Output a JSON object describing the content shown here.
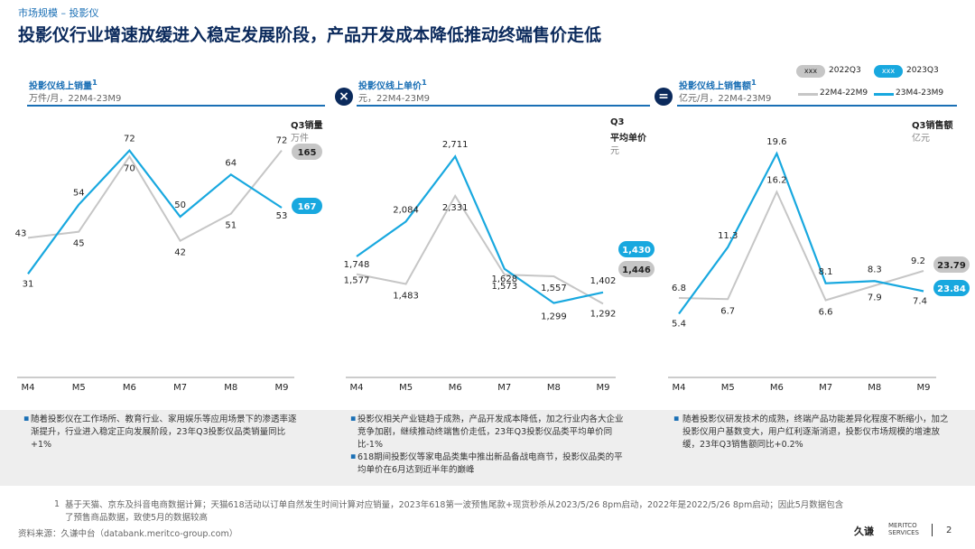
{
  "header": {
    "breadcrumb": "市场规模 – 投影仪",
    "title": "投影仪行业增速放缓进入稳定发展阶段，产品开发成本降低推动终端售价走低"
  },
  "legend": {
    "chip_label": "xxx",
    "year2022": "2022Q3",
    "year2023": "2023Q3",
    "series2022": "22M4-22M9",
    "series2023": "23M4-23M9",
    "color2022": "#c6c6c6",
    "color2023": "#18a8df"
  },
  "panels": [
    {
      "title": "投影仪线上销量",
      "title_sup": "1",
      "subtitle": "万件/月，22M4-23M9",
      "q3_label": "Q3销量",
      "q3_unit": "万件",
      "q3_2022": "165",
      "q3_2023": "167",
      "operator": ""
    },
    {
      "title": "投影仪线上单价",
      "title_sup": "1",
      "subtitle": "元，22M4-23M9",
      "q3_label": "Q3",
      "q3_label2": "平均单价",
      "q3_unit": "元",
      "q3_2022": "1,446",
      "q3_2023": "1,430",
      "operator": "×"
    },
    {
      "title": "投影仪线上销售额",
      "title_sup": "1",
      "subtitle": "亿元/月，22M4-23M9",
      "q3_label": "Q3销售额",
      "q3_unit": "亿元",
      "q3_2022": "23.79",
      "q3_2023": "23.84",
      "operator": "="
    }
  ],
  "chart_data": [
    {
      "type": "line",
      "title": "投影仪线上销量",
      "ylabel": "万件/月",
      "categories": [
        "M4",
        "M5",
        "M6",
        "M7",
        "M8",
        "M9"
      ],
      "series": [
        {
          "name": "22M4-22M9",
          "values": [
            43,
            45,
            70,
            42,
            51,
            72
          ],
          "labels": [
            "43",
            "45",
            "70",
            "42",
            "51",
            "72"
          ]
        },
        {
          "name": "23M4-23M9",
          "values": [
            31,
            54,
            72,
            50,
            64,
            53
          ],
          "labels": [
            "31",
            "54",
            "72",
            "50",
            "64",
            "53"
          ]
        }
      ],
      "ylim": [
        20,
        80
      ]
    },
    {
      "type": "line",
      "title": "投影仪线上单价",
      "ylabel": "元",
      "categories": [
        "M4",
        "M5",
        "M6",
        "M7",
        "M8",
        "M9"
      ],
      "series": [
        {
          "name": "22M4-22M9",
          "values": [
            1577,
            1483,
            2331,
            1573,
            1557,
            1292
          ],
          "labels": [
            "1,577",
            "1,483",
            "2,331",
            "1,573",
            "1,557",
            "1,292"
          ]
        },
        {
          "name": "23M4-23M9",
          "values": [
            1748,
            2084,
            2711,
            1628,
            1299,
            1402
          ],
          "labels": [
            "1,748",
            "2,084",
            "2,711",
            "1,628",
            "1,299",
            "1,402"
          ]
        }
      ],
      "ylim": [
        1000,
        3000
      ]
    },
    {
      "type": "line",
      "title": "投影仪线上销售额",
      "ylabel": "亿元/月",
      "categories": [
        "M4",
        "M5",
        "M6",
        "M7",
        "M8",
        "M9"
      ],
      "series": [
        {
          "name": "22M4-22M9",
          "values": [
            6.8,
            6.7,
            16.2,
            6.6,
            7.9,
            9.2
          ],
          "labels": [
            "6.8",
            "6.7",
            "16.2",
            "6.6",
            "7.9",
            "9.2"
          ]
        },
        {
          "name": "23M4-23M9",
          "values": [
            5.4,
            11.3,
            19.6,
            8.1,
            8.3,
            7.4
          ],
          "labels": [
            "5.4",
            "11.3",
            "19.6",
            "8.1",
            "8.3",
            "7.4"
          ]
        }
      ],
      "ylim": [
        2,
        22
      ]
    }
  ],
  "notes": [
    [
      "随着投影仪在工作场所、教育行业、家用娱乐等应用场景下的渗透率逐渐提升，行业进入稳定正向发展阶段，23年Q3投影仪品类销量同比+1%"
    ],
    [
      "投影仪相关产业链趋于成熟，产品开发成本降低，加之行业内各大企业竞争加剧，继续推动终端售价走低，23年Q3投影仪品类平均单价同比-1%",
      "618期间投影仪等家电品类集中推出新品备战电商节，投影仪品类的平均单价在6月达到近半年的巅峰"
    ],
    [
      "随着投影仪研发技术的成熟，终端产品功能差异化程度不断缩小，加之投影仪用户基数变大，用户红利逐渐消退，投影仪市场规模的增速放缓，23年Q3销售额同比+0.2%"
    ]
  ],
  "footer": {
    "footnote_num": "1",
    "footnote": "基于天猫、京东及抖音电商数据计算；天猫618活动以订单自然发生时间计算对应销量，2023年618第一波预售尾款+现货秒杀从2023/5/26 8pm启动，2022年是2022/5/26 8pm启动；因此5月数据包含了预售商品数据，致使5月的数据较高",
    "source": "资料来源：久谦中台（databank.meritco-group.com）",
    "logo": "久谦",
    "logo_en1": "MERITCO",
    "logo_en2": "SERVICES",
    "page": "2"
  }
}
